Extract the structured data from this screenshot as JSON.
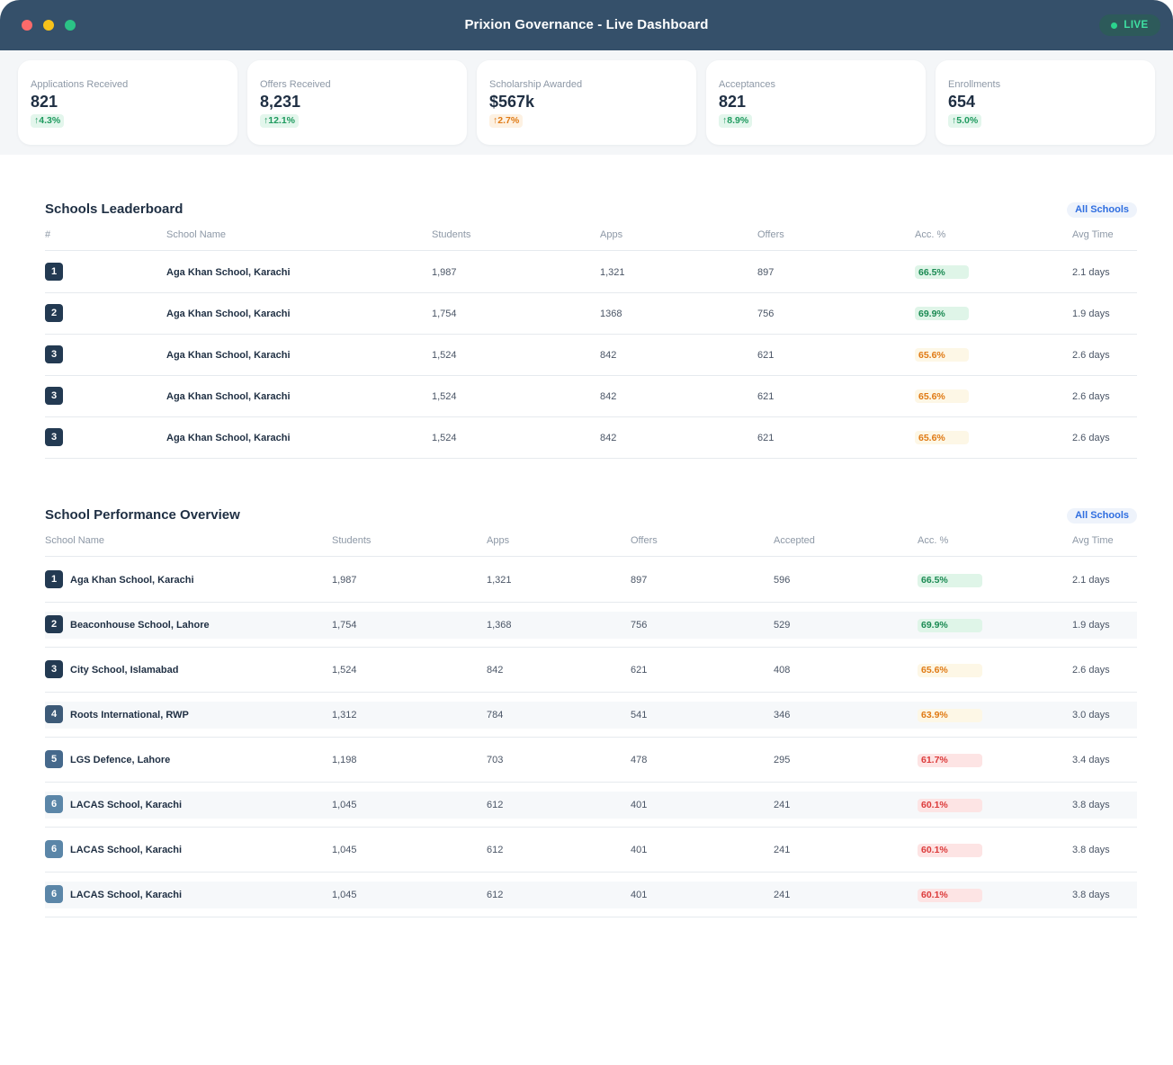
{
  "window": {
    "title": "Prixion Governance - Live Dashboard",
    "live_label": "LIVE"
  },
  "stats": [
    {
      "label": "Applications Received",
      "value": "821",
      "delta": "↑4.3%",
      "tone": "green"
    },
    {
      "label": "Offers Received",
      "value": "8,231",
      "delta": "↑12.1%",
      "tone": "green"
    },
    {
      "label": "Scholarship Awarded",
      "value": "$567k",
      "delta": "↑2.7%",
      "tone": "orange"
    },
    {
      "label": "Acceptances",
      "value": "821",
      "delta": "↑8.9%",
      "tone": "green"
    },
    {
      "label": "Enrollments",
      "value": "654",
      "delta": "↑5.0%",
      "tone": "green"
    }
  ],
  "leaderboard": {
    "title": "Schools Leaderboard",
    "filter_label": "All Schools",
    "columns": [
      "#",
      "School Name",
      "Students",
      "Apps",
      "Offers",
      "Acc. %",
      "Avg Time"
    ],
    "rows": [
      {
        "rank": "1",
        "name": "Aga Khan School, Karachi",
        "students": "1,987",
        "apps": "1,321",
        "offers": "897",
        "acc": "66.5%",
        "acc_value": 66.5,
        "tone": "green",
        "time": "2.1 days"
      },
      {
        "rank": "2",
        "name": "Aga Khan School, Karachi",
        "students": "1,754",
        "apps": "1368",
        "offers": "756",
        "acc": "69.9%",
        "acc_value": 69.9,
        "tone": "green",
        "time": "1.9 days"
      },
      {
        "rank": "3",
        "name": "Aga Khan School, Karachi",
        "students": "1,524",
        "apps": "842",
        "offers": "621",
        "acc": "65.6%",
        "acc_value": 65.6,
        "tone": "orange",
        "time": "2.6 days"
      },
      {
        "rank": "3",
        "name": "Aga Khan School, Karachi",
        "students": "1,524",
        "apps": "842",
        "offers": "621",
        "acc": "65.6%",
        "acc_value": 65.6,
        "tone": "orange",
        "time": "2.6 days"
      },
      {
        "rank": "3",
        "name": "Aga Khan School, Karachi",
        "students": "1,524",
        "apps": "842",
        "offers": "621",
        "acc": "65.6%",
        "acc_value": 65.6,
        "tone": "orange",
        "time": "2.6 days"
      }
    ]
  },
  "performance": {
    "title": "School Performance Overview",
    "filter_label": "All Schools",
    "columns": [
      "School Name",
      "Students",
      "Apps",
      "Offers",
      "Accepted",
      "Acc. %",
      "Avg Time"
    ],
    "rows": [
      {
        "rank": "1",
        "rank_color": "#233a52",
        "name": "Aga Khan School, Karachi",
        "students": "1,987",
        "apps": "1,321",
        "offers": "897",
        "accepted": "596",
        "acc": "66.5%",
        "tone": "green",
        "time": "2.1 days"
      },
      {
        "rank": "2",
        "rank_color": "#233a52",
        "name": "Beaconhouse School, Lahore",
        "students": "1,754",
        "apps": "1,368",
        "offers": "756",
        "accepted": "529",
        "acc": "69.9%",
        "tone": "green",
        "time": "1.9 days"
      },
      {
        "rank": "3",
        "rank_color": "#233a52",
        "name": "City School, Islamabad",
        "students": "1,524",
        "apps": "842",
        "offers": "621",
        "accepted": "408",
        "acc": "65.6%",
        "tone": "orange",
        "time": "2.6 days"
      },
      {
        "rank": "4",
        "rank_color": "#3d5a78",
        "name": "Roots International, RWP",
        "students": "1,312",
        "apps": "784",
        "offers": "541",
        "accepted": "346",
        "acc": "63.9%",
        "tone": "orange",
        "time": "3.0 days"
      },
      {
        "rank": "5",
        "rank_color": "#46698c",
        "name": "LGS Defence, Lahore",
        "students": "1,198",
        "apps": "703",
        "offers": "478",
        "accepted": "295",
        "acc": "61.7%",
        "tone": "red",
        "time": "3.4 days"
      },
      {
        "rank": "6",
        "rank_color": "#5b86a8",
        "name": "LACAS School, Karachi",
        "students": "1,045",
        "apps": "612",
        "offers": "401",
        "accepted": "241",
        "acc": "60.1%",
        "tone": "red",
        "time": "3.8 days"
      },
      {
        "rank": "6",
        "rank_color": "#5b86a8",
        "name": "LACAS School, Karachi",
        "students": "1,045",
        "apps": "612",
        "offers": "401",
        "accepted": "241",
        "acc": "60.1%",
        "tone": "red",
        "time": "3.8 days"
      },
      {
        "rank": "6",
        "rank_color": "#5b86a8",
        "name": "LACAS School, Karachi",
        "students": "1,045",
        "apps": "612",
        "offers": "401",
        "accepted": "241",
        "acc": "60.1%",
        "tone": "red",
        "time": "3.8 days"
      }
    ]
  }
}
